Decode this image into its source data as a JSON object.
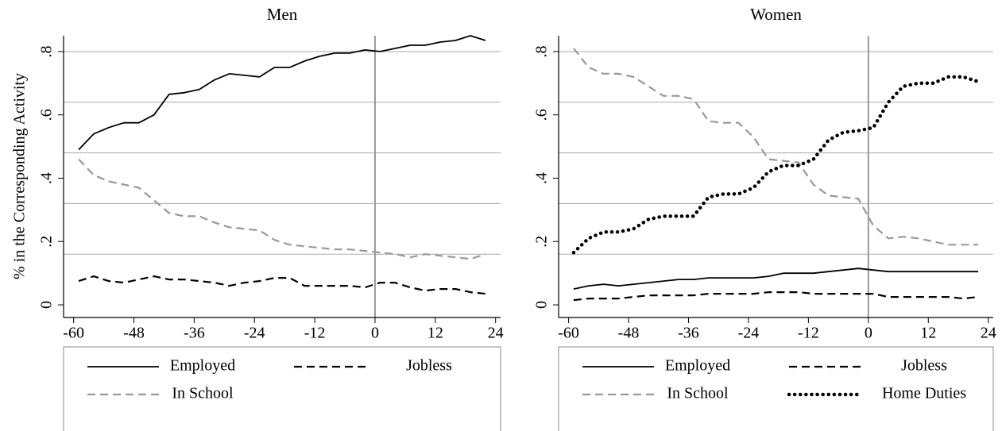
{
  "chart_data": [
    {
      "type": "line",
      "title": "Men",
      "y_label": "% in the Corresponding Activity",
      "xlim": [
        -62,
        25
      ],
      "xticks": [
        -60,
        -48,
        -36,
        -24,
        -12,
        0,
        12,
        24
      ],
      "ylim": [
        -0.04,
        0.85
      ],
      "yticks": [
        0,
        {
          "value": 0.2,
          "label": ".2"
        },
        {
          "value": 0.4,
          "label": ".4"
        },
        {
          "value": 0.6,
          "label": ".6"
        },
        {
          "value": 0.8,
          "label": ".8"
        }
      ],
      "ygrid": [
        0.16,
        0.32,
        0.48,
        0.64,
        0.8
      ],
      "vline": 0,
      "x": [
        -59,
        -56,
        -53,
        -50,
        -47,
        -44,
        -41,
        -38,
        -35,
        -32,
        -29,
        -26,
        -23,
        -20,
        -17,
        -14,
        -11,
        -8,
        -5,
        -2,
        1,
        4,
        7,
        10,
        13,
        16,
        19,
        22
      ],
      "series": [
        {
          "name": "Employed",
          "color": "#000000",
          "style": "solid",
          "values": [
            0.49,
            0.54,
            0.56,
            0.575,
            0.575,
            0.6,
            0.665,
            0.67,
            0.68,
            0.71,
            0.73,
            0.725,
            0.72,
            0.75,
            0.75,
            0.77,
            0.785,
            0.795,
            0.795,
            0.805,
            0.8,
            0.81,
            0.82,
            0.82,
            0.83,
            0.835,
            0.85,
            0.835
          ]
        },
        {
          "name": "Jobless",
          "color": "#000000",
          "style": "dash",
          "values": [
            0.075,
            0.09,
            0.075,
            0.07,
            0.08,
            0.09,
            0.08,
            0.08,
            0.075,
            0.07,
            0.06,
            0.07,
            0.075,
            0.085,
            0.085,
            0.06,
            0.06,
            0.06,
            0.06,
            0.055,
            0.07,
            0.07,
            0.055,
            0.045,
            0.05,
            0.05,
            0.04,
            0.035
          ]
        },
        {
          "name": "In School",
          "color": "#999999",
          "style": "dash",
          "values": [
            0.46,
            0.41,
            0.39,
            0.38,
            0.37,
            0.33,
            0.29,
            0.28,
            0.28,
            0.26,
            0.245,
            0.24,
            0.235,
            0.205,
            0.19,
            0.185,
            0.18,
            0.175,
            0.175,
            0.17,
            0.165,
            0.16,
            0.15,
            0.16,
            0.155,
            0.15,
            0.145,
            0.16
          ]
        }
      ]
    },
    {
      "type": "line",
      "title": "Women",
      "xlim": [
        -62,
        25
      ],
      "xticks": [
        -60,
        -48,
        -36,
        -24,
        -12,
        0,
        12,
        24
      ],
      "ylim": [
        -0.04,
        0.85
      ],
      "yticks": [
        0,
        {
          "value": 0.2,
          "label": ".2"
        },
        {
          "value": 0.4,
          "label": ".4"
        },
        {
          "value": 0.6,
          "label": ".6"
        },
        {
          "value": 0.8,
          "label": ".8"
        }
      ],
      "ygrid": [
        0.16,
        0.32,
        0.48,
        0.64,
        0.8
      ],
      "vline": 0,
      "x": [
        -59,
        -56,
        -53,
        -50,
        -47,
        -44,
        -41,
        -38,
        -35,
        -32,
        -29,
        -26,
        -23,
        -20,
        -17,
        -14,
        -11,
        -8,
        -5,
        -2,
        1,
        4,
        7,
        10,
        13,
        16,
        19,
        22
      ],
      "series": [
        {
          "name": "Employed",
          "color": "#000000",
          "style": "solid",
          "values": [
            0.05,
            0.06,
            0.065,
            0.06,
            0.065,
            0.07,
            0.075,
            0.08,
            0.08,
            0.085,
            0.085,
            0.085,
            0.085,
            0.09,
            0.1,
            0.1,
            0.1,
            0.105,
            0.11,
            0.115,
            0.11,
            0.105,
            0.105,
            0.105,
            0.105,
            0.105,
            0.105,
            0.105
          ]
        },
        {
          "name": "Jobless",
          "color": "#000000",
          "style": "dash",
          "values": [
            0.015,
            0.02,
            0.02,
            0.02,
            0.025,
            0.03,
            0.03,
            0.03,
            0.03,
            0.035,
            0.035,
            0.035,
            0.035,
            0.04,
            0.04,
            0.04,
            0.035,
            0.035,
            0.035,
            0.035,
            0.035,
            0.025,
            0.025,
            0.025,
            0.025,
            0.025,
            0.02,
            0.025
          ]
        },
        {
          "name": "In School",
          "color": "#999999",
          "style": "dash",
          "values": [
            0.81,
            0.75,
            0.73,
            0.73,
            0.72,
            0.69,
            0.66,
            0.66,
            0.65,
            0.58,
            0.575,
            0.575,
            0.53,
            0.46,
            0.455,
            0.45,
            0.38,
            0.345,
            0.34,
            0.335,
            0.25,
            0.21,
            0.215,
            0.21,
            0.2,
            0.19,
            0.19,
            0.19
          ]
        },
        {
          "name": "Home Duties",
          "color": "#000000",
          "style": "dot",
          "values": [
            0.165,
            0.21,
            0.23,
            0.23,
            0.24,
            0.27,
            0.28,
            0.28,
            0.28,
            0.34,
            0.35,
            0.35,
            0.37,
            0.42,
            0.44,
            0.44,
            0.46,
            0.52,
            0.545,
            0.55,
            0.56,
            0.64,
            0.69,
            0.7,
            0.7,
            0.72,
            0.72,
            0.705
          ]
        }
      ]
    }
  ]
}
